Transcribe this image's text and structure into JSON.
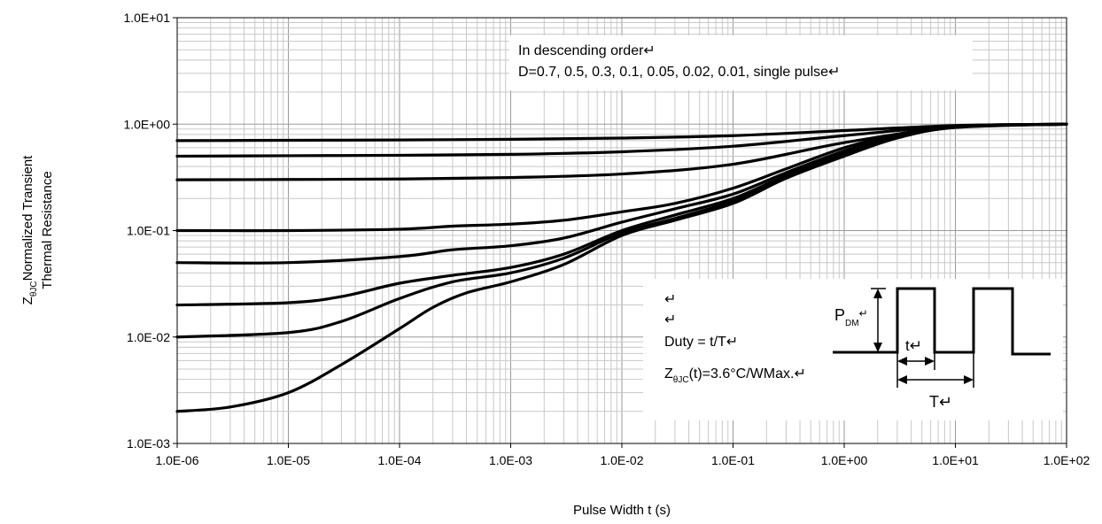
{
  "chart_data": {
    "type": "line",
    "title": "",
    "xlabel": "Pulse Width t (s)",
    "ylabel_line1_main": "Z",
    "ylabel_line1_sub": "θJC",
    "ylabel_line1_rest": "Normalized Transient",
    "ylabel_line2": "Thermal Resistance",
    "x_scale": "log",
    "y_scale": "log",
    "xlim": [
      1e-06,
      100
    ],
    "ylim": [
      0.001,
      10
    ],
    "grid": true,
    "x_tick_labels": [
      "1.0E-06",
      "1.0E-05",
      "1.0E-04",
      "1.0E-03",
      "1.0E-02",
      "1.0E-01",
      "1.0E+00",
      "1.0E+01",
      "1.0E+02"
    ],
    "y_tick_labels": [
      "1.0E-03",
      "1.0E-02",
      "1.0E-01",
      "1.0E+00",
      "1.0E+01"
    ],
    "legend_line1": "In descending order↵",
    "legend_line2": "D=0.7, 0.5, 0.3, 0.1, 0.05, 0.02, 0.01, single pulse↵",
    "series": [
      {
        "x": [
          1e-06,
          1e-05,
          0.0001,
          0.001,
          0.01,
          0.1,
          1,
          10,
          100
        ],
        "y": [
          0.7,
          0.705,
          0.71,
          0.72,
          0.74,
          0.78,
          0.87,
          0.97,
          1.0
        ]
      },
      {
        "x": [
          1e-06,
          1e-05,
          0.0001,
          0.001,
          0.01,
          0.1,
          1,
          10,
          100
        ],
        "y": [
          0.5,
          0.505,
          0.51,
          0.52,
          0.55,
          0.62,
          0.78,
          0.96,
          1.0
        ]
      },
      {
        "x": [
          1e-06,
          1e-05,
          0.0001,
          0.001,
          0.01,
          0.1,
          1,
          10,
          100
        ],
        "y": [
          0.3,
          0.302,
          0.305,
          0.315,
          0.34,
          0.42,
          0.67,
          0.94,
          1.0
        ]
      },
      {
        "x": [
          1e-06,
          1e-05,
          0.0001,
          0.0003,
          0.001,
          0.003,
          0.01,
          0.03,
          0.1,
          0.3,
          1,
          3,
          10,
          100
        ],
        "y": [
          0.1,
          0.1,
          0.103,
          0.11,
          0.115,
          0.125,
          0.15,
          0.18,
          0.25,
          0.38,
          0.6,
          0.8,
          0.95,
          1.0
        ]
      },
      {
        "x": [
          1e-06,
          1e-05,
          0.0001,
          0.0003,
          0.001,
          0.003,
          0.01,
          0.03,
          0.1,
          0.3,
          1,
          3,
          10,
          100
        ],
        "y": [
          0.05,
          0.05,
          0.057,
          0.066,
          0.072,
          0.085,
          0.12,
          0.16,
          0.22,
          0.35,
          0.56,
          0.78,
          0.95,
          1.0
        ]
      },
      {
        "x": [
          1e-06,
          1e-05,
          3e-05,
          0.0001,
          0.0003,
          0.001,
          0.003,
          0.01,
          0.03,
          0.1,
          0.3,
          1,
          3,
          10,
          100
        ],
        "y": [
          0.02,
          0.021,
          0.024,
          0.032,
          0.038,
          0.045,
          0.06,
          0.1,
          0.14,
          0.2,
          0.33,
          0.53,
          0.76,
          0.94,
          1.0
        ]
      },
      {
        "x": [
          1e-06,
          1e-05,
          3e-05,
          0.0001,
          0.0003,
          0.001,
          0.003,
          0.01,
          0.03,
          0.1,
          0.3,
          1,
          3,
          10,
          100
        ],
        "y": [
          0.01,
          0.011,
          0.014,
          0.023,
          0.033,
          0.04,
          0.055,
          0.095,
          0.13,
          0.19,
          0.32,
          0.52,
          0.75,
          0.94,
          1.0
        ]
      },
      {
        "x": [
          1e-06,
          3e-06,
          1e-05,
          3e-05,
          0.0001,
          0.0002,
          0.0004,
          0.001,
          0.003,
          0.01,
          0.03,
          0.1,
          0.3,
          1,
          3,
          10,
          100
        ],
        "y": [
          0.002,
          0.0022,
          0.003,
          0.0055,
          0.012,
          0.019,
          0.026,
          0.033,
          0.048,
          0.09,
          0.125,
          0.18,
          0.31,
          0.5,
          0.74,
          0.93,
          1.0
        ]
      }
    ],
    "inset": {
      "blank1": "↵",
      "blank2": "↵",
      "duty_text": "Duty = t/T↵",
      "z_main": "Z",
      "z_sub": "θJC",
      "z_rest": "(t)=3.6°C/WMax.↵",
      "pdm_main": "P",
      "pdm_sub": "DM",
      "pdm_mark": "↵",
      "t_label": "t↵",
      "T_label": "T↵"
    }
  }
}
